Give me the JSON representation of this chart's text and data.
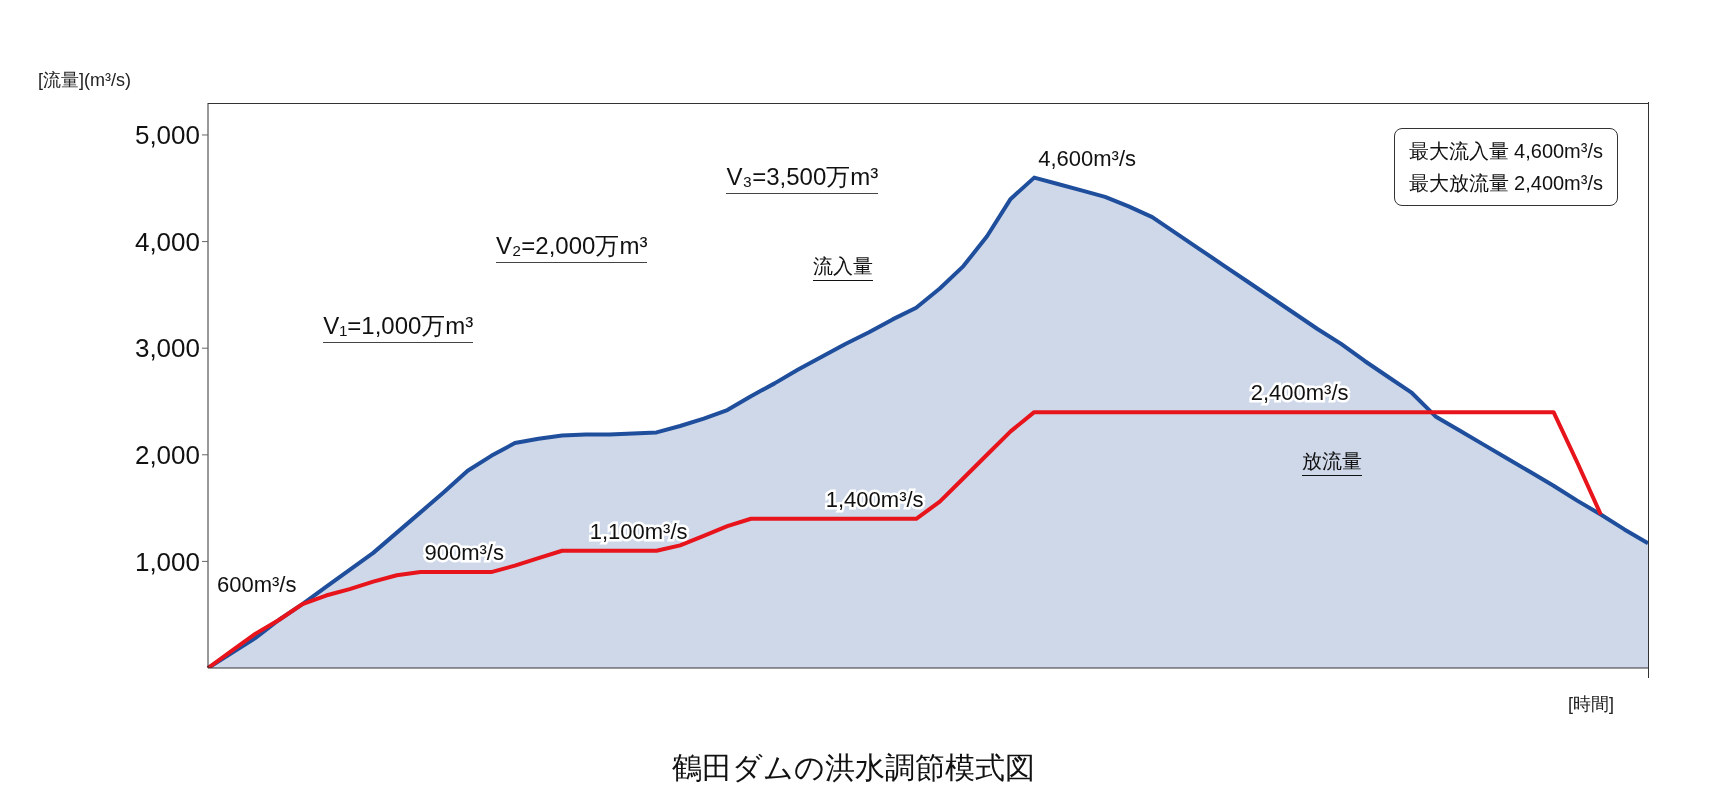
{
  "chart_data": {
    "type": "line",
    "title": "鶴田ダムの洪水調節模式図",
    "xlabel": "[時間]",
    "ylabel": "[流量](m³/s)",
    "categories": [
      null,
      null,
      null,
      null,
      null,
      null,
      null,
      null,
      null,
      null,
      null,
      null,
      null,
      null,
      null,
      null,
      null,
      null,
      null,
      null,
      null,
      null,
      null,
      null,
      null,
      null,
      null,
      null,
      null,
      null,
      null,
      null,
      null,
      null,
      null,
      null,
      null,
      null,
      null,
      null,
      null,
      null,
      null,
      null,
      null,
      null,
      null,
      null,
      null,
      null,
      null,
      null,
      null,
      null,
      null,
      null,
      null,
      null,
      null,
      null,
      null,
      null
    ],
    "series": [
      {
        "name": "流入量",
        "type": "area",
        "color": "#1f4e9c",
        "values": [
          0,
          140,
          280,
          450,
          600,
          760,
          920,
          1080,
          1270,
          1460,
          1650,
          1850,
          1990,
          2110,
          2150,
          2180,
          2190,
          2190,
          2200,
          2210,
          2270,
          2340,
          2420,
          2550,
          2670,
          2800,
          2920,
          3040,
          3150,
          3270,
          3380,
          3560,
          3770,
          4050,
          4400,
          4600,
          4540,
          4480,
          4420,
          4330,
          4230,
          4080,
          3930,
          3780,
          3630,
          3480,
          3330,
          3180,
          3040,
          2880,
          2730,
          2580,
          2360,
          2230,
          2100,
          1970,
          1840,
          1710,
          1570,
          1440,
          1300,
          1170
        ],
        "value_labels": [
          null,
          null,
          null,
          null,
          null,
          null,
          null,
          null,
          null,
          null,
          null,
          null,
          null,
          null,
          null,
          null,
          null,
          null,
          null,
          null,
          null,
          null,
          null,
          null,
          null,
          null,
          null,
          null,
          null,
          null,
          null,
          null,
          null,
          null,
          null,
          "4,600m³/s",
          null,
          null,
          null,
          null,
          null,
          null,
          null,
          null,
          null,
          null,
          null,
          null,
          null,
          null,
          null,
          null,
          null,
          null,
          null,
          null,
          null,
          null,
          null,
          null,
          null,
          null
        ]
      },
      {
        "name": "放流量",
        "color": "#e8141b",
        "values": [
          0,
          160,
          320,
          450,
          600,
          680,
          740,
          810,
          870,
          900,
          900,
          900,
          900,
          960,
          1030,
          1100,
          1100,
          1100,
          1100,
          1100,
          1150,
          1240,
          1330,
          1400,
          1400,
          1400,
          1400,
          1400,
          1400,
          1400,
          1400,
          1560,
          1780,
          2000,
          2220,
          2400,
          2400,
          2400,
          2400,
          2400,
          2400,
          2400,
          2400,
          2400,
          2400,
          2400,
          2400,
          2400,
          2400,
          2400,
          2400,
          2400,
          2400,
          2400,
          2400,
          2400,
          2400,
          2400,
          1930,
          1440,
          null,
          null
        ],
        "value_labels": [
          null,
          null,
          null,
          null,
          "600m³/s",
          null,
          null,
          null,
          null,
          "900m³/s",
          null,
          null,
          null,
          null,
          null,
          null,
          "1,100m³/s",
          null,
          null,
          null,
          null,
          null,
          null,
          null,
          null,
          null,
          "1,400m³/s",
          null,
          null,
          null,
          null,
          null,
          null,
          null,
          null,
          null,
          null,
          null,
          null,
          null,
          null,
          null,
          null,
          null,
          "2,400m³/s",
          null,
          null,
          null,
          null,
          null,
          null,
          null,
          null,
          null,
          null,
          null,
          null,
          null,
          null,
          null,
          null,
          null
        ]
      }
    ],
    "ylim": [
      0,
      5300
    ],
    "yticks": [
      {
        "value": 1000,
        "label": "1,000"
      },
      {
        "value": 2000,
        "label": "2,000"
      },
      {
        "value": 3000,
        "label": "3,000"
      },
      {
        "value": 4000,
        "label": "4,000"
      },
      {
        "value": 5000,
        "label": "5,000"
      }
    ],
    "tick_labels": "y",
    "legend": false,
    "grid": false,
    "annotations": [
      "V₁=1,000万m³",
      "V₂=2,000万m³",
      "V₃=3,500万m³",
      "最大流入量 4,600m³/s",
      "最大放流量 2,400m³/s"
    ]
  }
}
